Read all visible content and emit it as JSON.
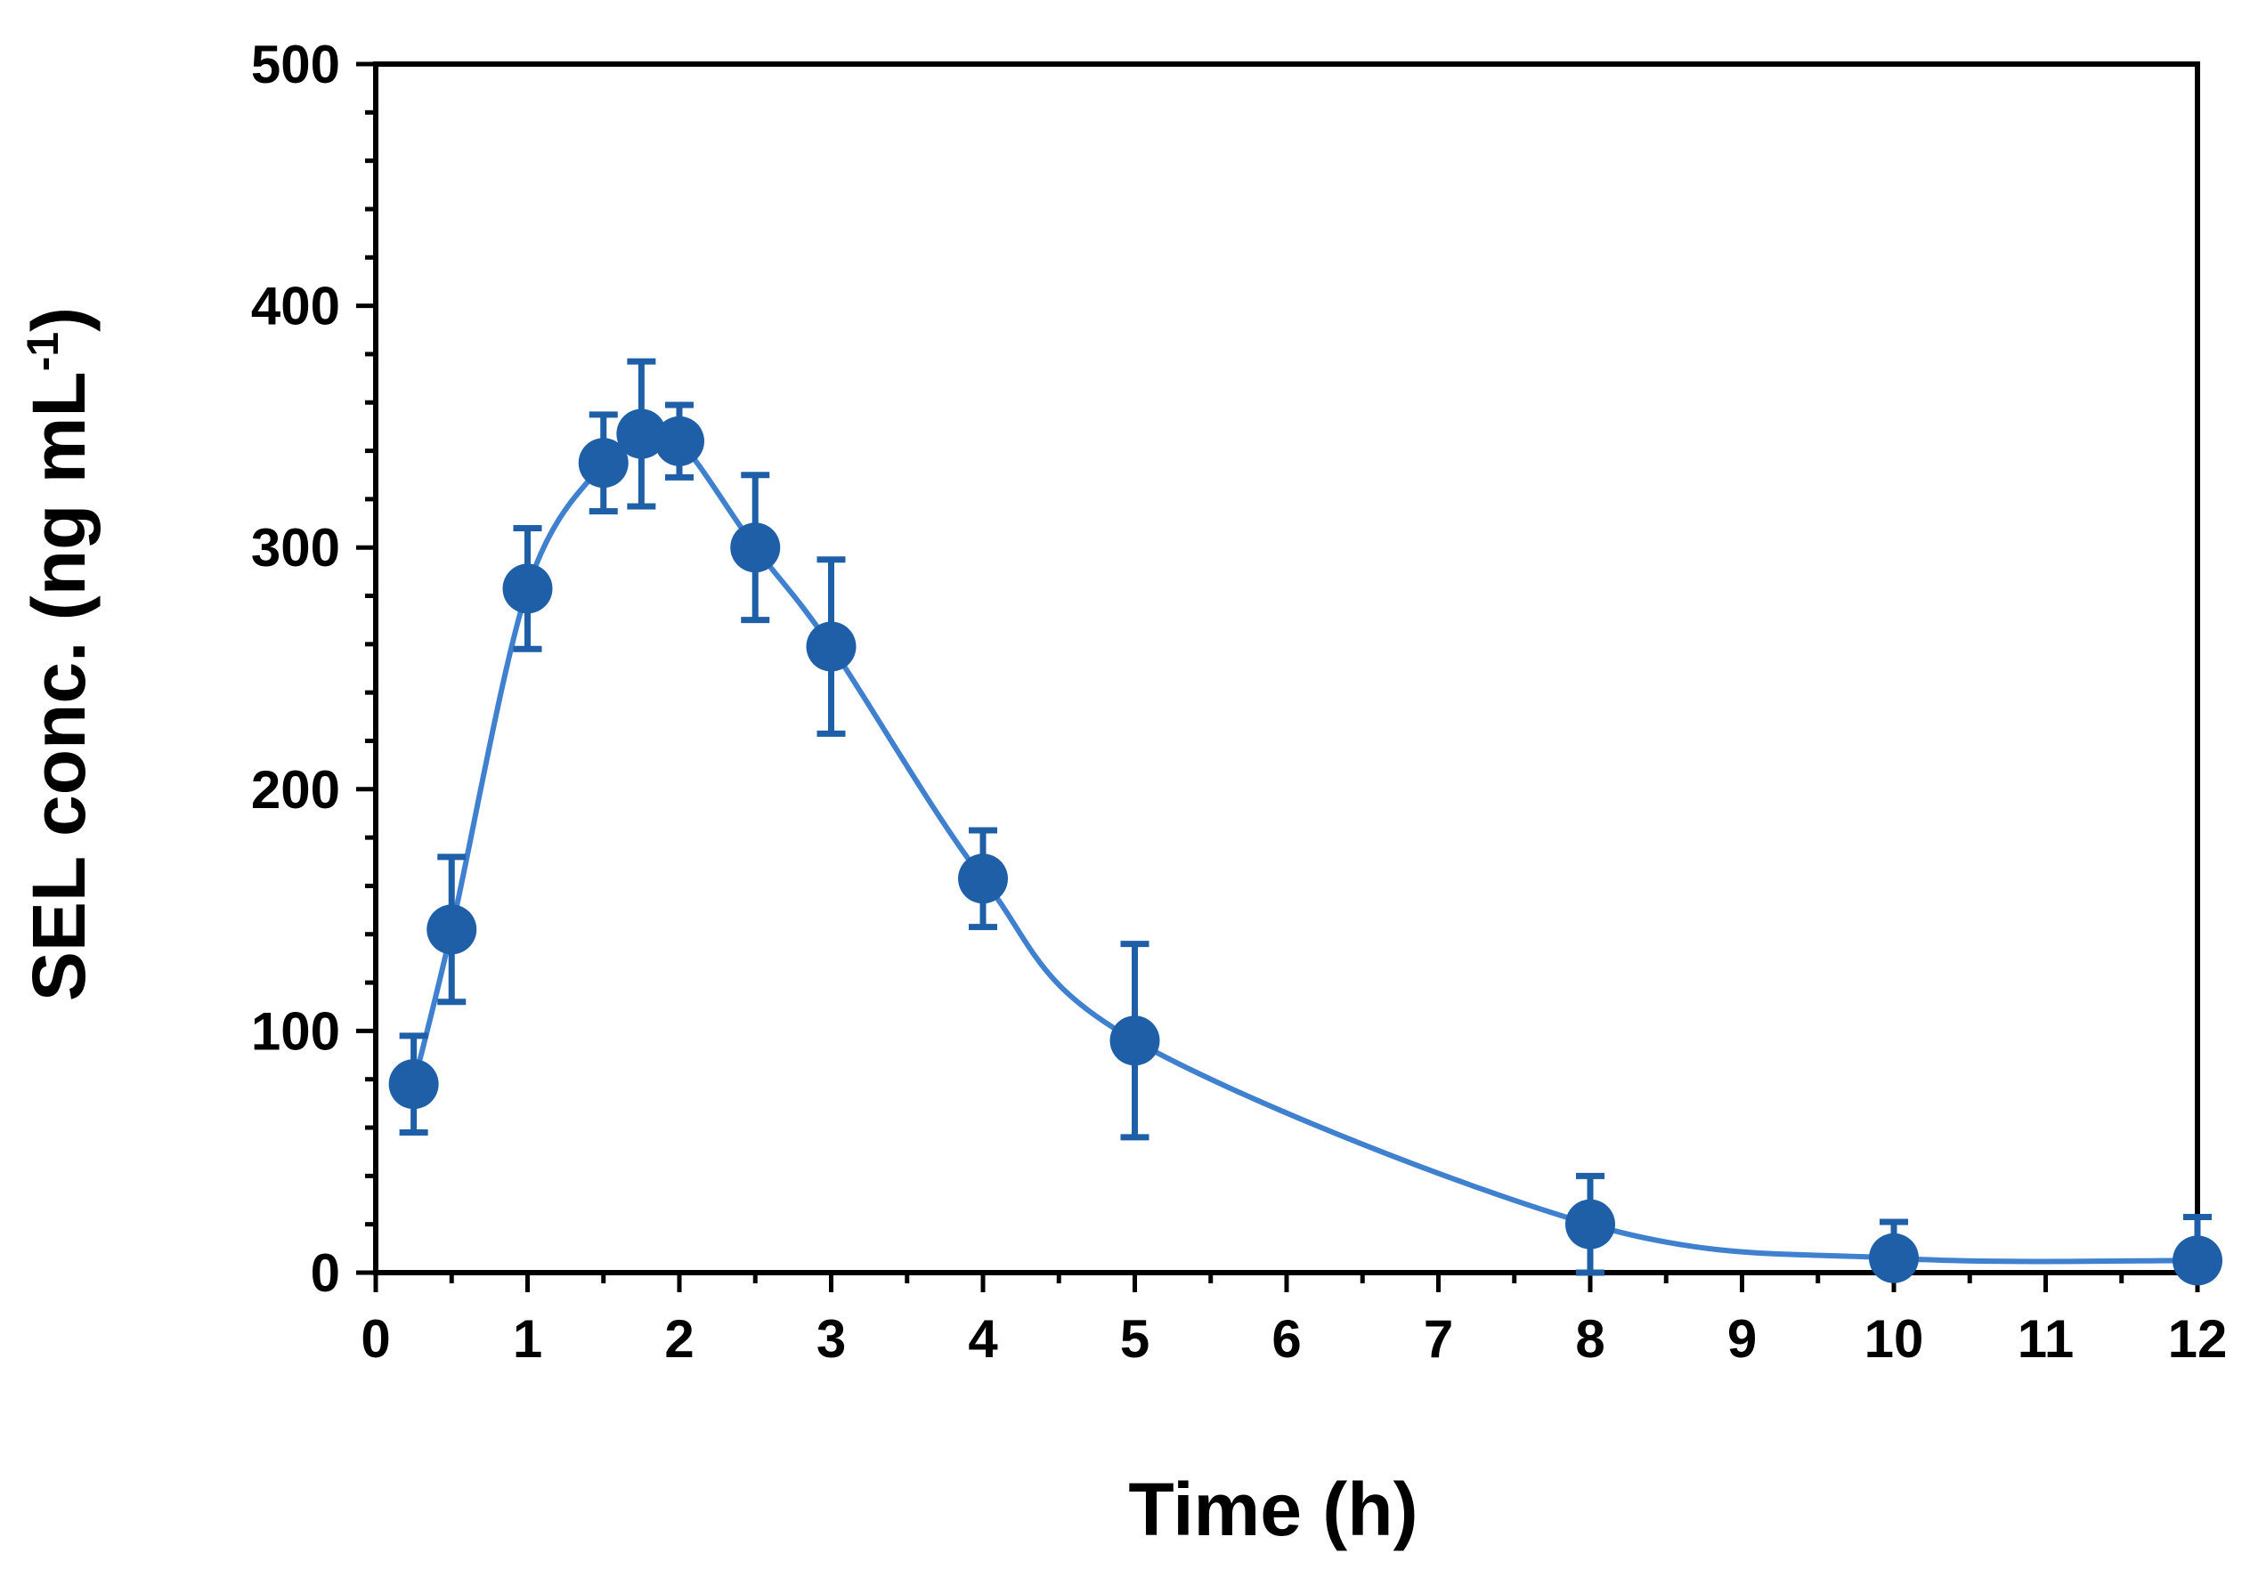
{
  "chart_data": {
    "type": "line",
    "title": "",
    "xlabel": "Time (h)",
    "ylabel": {
      "main": "SEL conc. (ng mL",
      "superscript": "-1",
      "close": ")"
    },
    "xlim": [
      0,
      12
    ],
    "ylim": [
      0,
      500
    ],
    "x_ticks": [
      0,
      1,
      2,
      3,
      4,
      5,
      6,
      7,
      8,
      9,
      10,
      11,
      12
    ],
    "y_ticks": [
      0,
      100,
      200,
      300,
      400,
      500
    ],
    "grid": false,
    "legend": "none",
    "series": [
      {
        "name": "SEL",
        "color": "#1f5fa8",
        "line_color": "#3f80cf",
        "x": [
          0.25,
          0.5,
          1,
          1.5,
          1.75,
          2,
          2.5,
          3,
          4,
          5,
          8,
          10,
          12
        ],
        "y": [
          78,
          142,
          283,
          335,
          347,
          344,
          300,
          259,
          163,
          96,
          20,
          6,
          5
        ],
        "error": [
          20,
          30,
          25,
          20,
          30,
          15,
          30,
          36,
          20,
          40,
          20,
          15,
          18
        ]
      }
    ]
  }
}
